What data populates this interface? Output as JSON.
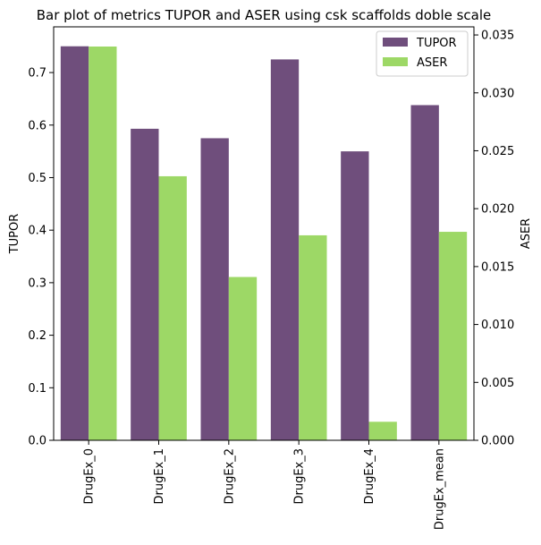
{
  "chart_data": {
    "type": "bar",
    "title": "Bar plot of metrics TUPOR and ASER using csk scaffolds doble scale",
    "categories": [
      "DrugEx_0",
      "DrugEx_1",
      "DrugEx_2",
      "DrugEx_3",
      "DrugEx_4",
      "DrugEx_mean"
    ],
    "series": [
      {
        "name": "TUPOR",
        "axis": "left",
        "color": "#6f4e7c",
        "values": [
          0.75,
          0.593,
          0.575,
          0.725,
          0.55,
          0.638
        ]
      },
      {
        "name": "ASER",
        "axis": "right",
        "color": "#9dd866",
        "values": [
          0.034,
          0.0228,
          0.0141,
          0.0177,
          0.0016,
          0.018
        ]
      }
    ],
    "ylabel_left": "TUPOR",
    "ylabel_right": "ASER",
    "ylim_left": [
      0,
      0.787
    ],
    "ylim_right": [
      0,
      0.0357
    ],
    "yticks_left": [
      "0.0",
      "0.1",
      "0.2",
      "0.3",
      "0.4",
      "0.5",
      "0.6",
      "0.7"
    ],
    "yticks_right": [
      "0.000",
      "0.005",
      "0.010",
      "0.015",
      "0.020",
      "0.025",
      "0.030",
      "0.035"
    ],
    "grid": false,
    "legend_position": "top-right"
  }
}
